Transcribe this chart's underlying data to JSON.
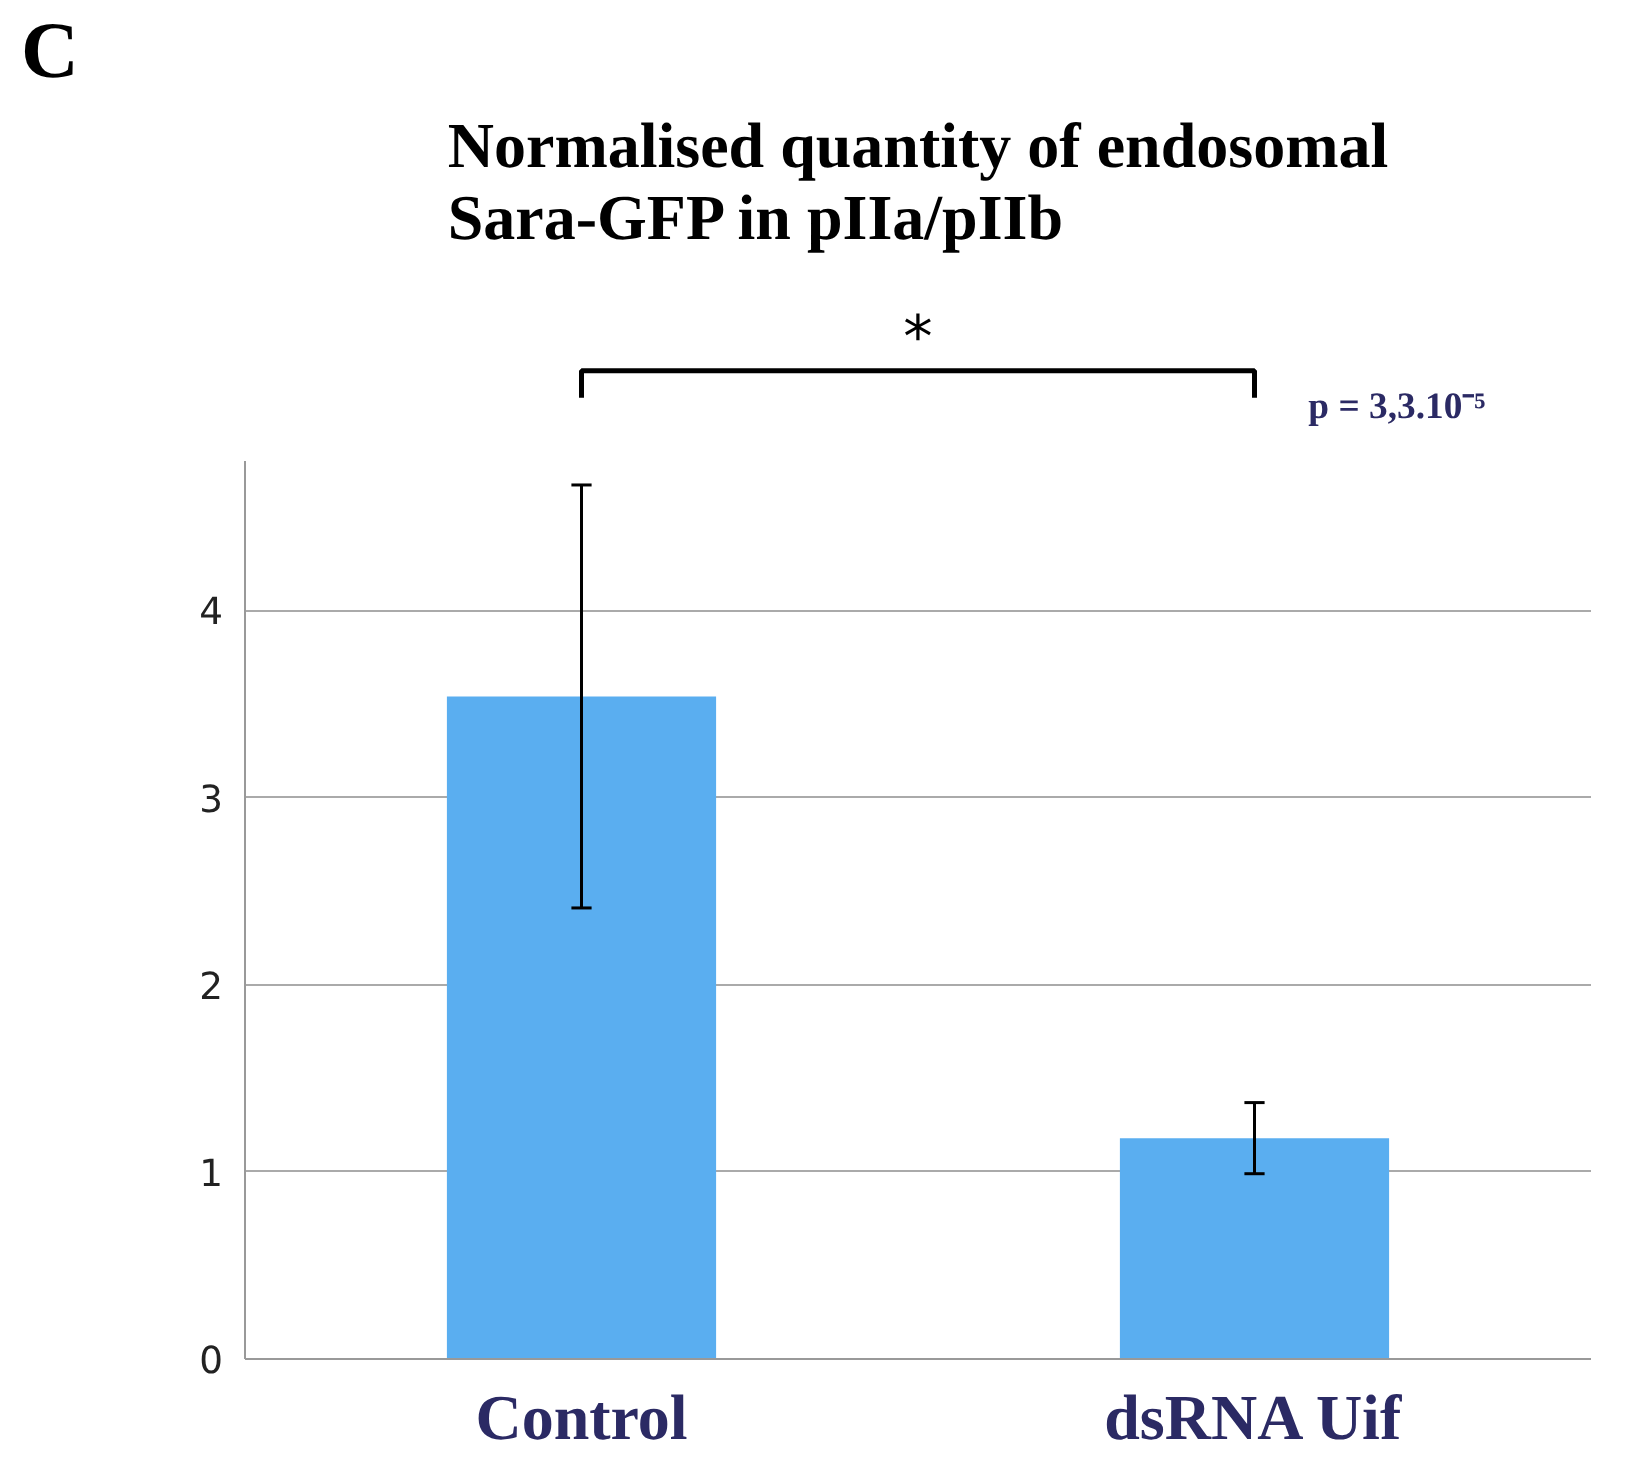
{
  "chart_data": {
    "type": "bar",
    "title": "Normalised quantity of endosomal\nSara-GFP in pIIa/pIIb",
    "categories": [
      "Control",
      "dsRNA Uif"
    ],
    "values": [
      3.54,
      1.18
    ],
    "errors": [
      1.13,
      0.19
    ],
    "color": "#5aaef0",
    "ylim": [
      0,
      4.8
    ],
    "yticks": [
      0,
      1,
      2,
      3,
      4
    ],
    "grid": "y",
    "annotations": [
      "C",
      "*",
      "p = 3,3.10⁻⁵"
    ]
  }
}
